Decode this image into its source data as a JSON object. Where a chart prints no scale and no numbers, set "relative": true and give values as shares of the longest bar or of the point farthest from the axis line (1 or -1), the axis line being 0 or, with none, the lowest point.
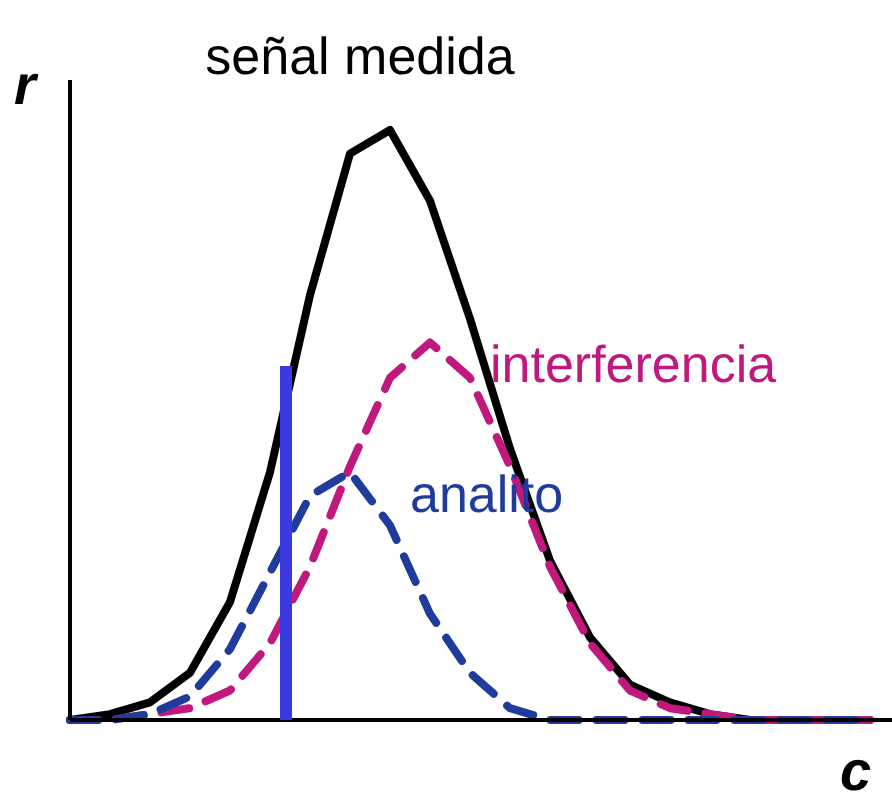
{
  "chart_data": {
    "type": "line",
    "relative": true,
    "xlabel": "c",
    "ylabel": "r",
    "categories": [
      null,
      null,
      null,
      null,
      null,
      null,
      null,
      null,
      null,
      null,
      null,
      null,
      null,
      null,
      null,
      null,
      null,
      null,
      null,
      null,
      null
    ],
    "series": [
      {
        "name": "señal medida",
        "color": "#000000",
        "line_style": "solid",
        "values": [
          0,
          0.01,
          0.03,
          0.08,
          0.2,
          0.42,
          0.72,
          0.96,
          1,
          0.88,
          0.68,
          0.46,
          0.27,
          0.14,
          0.06,
          0.03,
          0.01,
          0,
          0,
          0,
          0
        ]
      },
      {
        "name": "interferencia",
        "color": "#c0187c",
        "line_style": "dashed",
        "values": [
          0,
          0,
          0.01,
          0.02,
          0.05,
          0.13,
          0.26,
          0.43,
          0.58,
          0.64,
          0.58,
          0.43,
          0.26,
          0.13,
          0.05,
          0.02,
          0.01,
          0,
          0,
          0,
          0
        ]
      },
      {
        "name": "analito",
        "color": "#1f3c9c",
        "line_style": "dashed",
        "values": [
          0,
          0,
          0.01,
          0.04,
          0.12,
          0.25,
          0.38,
          0.42,
          0.33,
          0.18,
          0.08,
          0.02,
          0,
          0,
          0,
          0,
          0,
          0,
          0,
          0,
          0
        ]
      }
    ]
  }
}
